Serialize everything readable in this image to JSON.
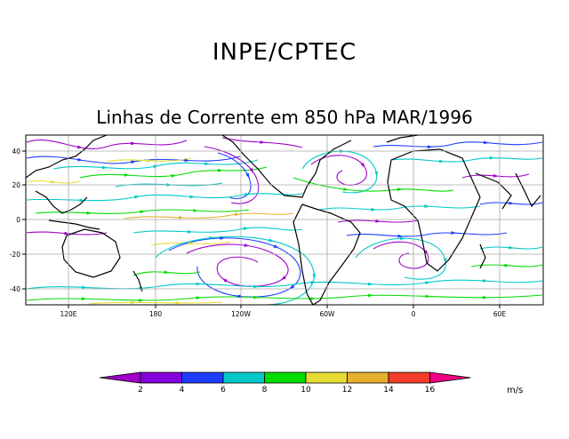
{
  "header": {
    "org": "INPE/CPTEC",
    "title": "Linhas de Corrente em 850 hPa MAR/1996"
  },
  "map": {
    "lon_ticks": [
      "120E",
      "180",
      "120W",
      "60W",
      "0",
      "60E"
    ],
    "lat_ticks": [
      "40",
      "20",
      "0",
      "-20",
      "-40"
    ],
    "grid_color": "#a8a8a8",
    "coast_color": "#000000"
  },
  "colorbar": {
    "labels": [
      "2",
      "4",
      "6",
      "8",
      "10",
      "12",
      "14",
      "16"
    ],
    "colors": [
      "#a000c8",
      "#8200dc",
      "#1e3cff",
      "#00c8c8",
      "#00dc00",
      "#e6dc32",
      "#e6af2d",
      "#f03c28",
      "#f00082"
    ],
    "units": "m/s"
  },
  "streamlines": {
    "level_colors": [
      "#a000c8",
      "#1e3cff",
      "#00c8c8",
      "#00dc00",
      "#e6dc32",
      "#e6af2d",
      "#f03c28"
    ]
  }
}
